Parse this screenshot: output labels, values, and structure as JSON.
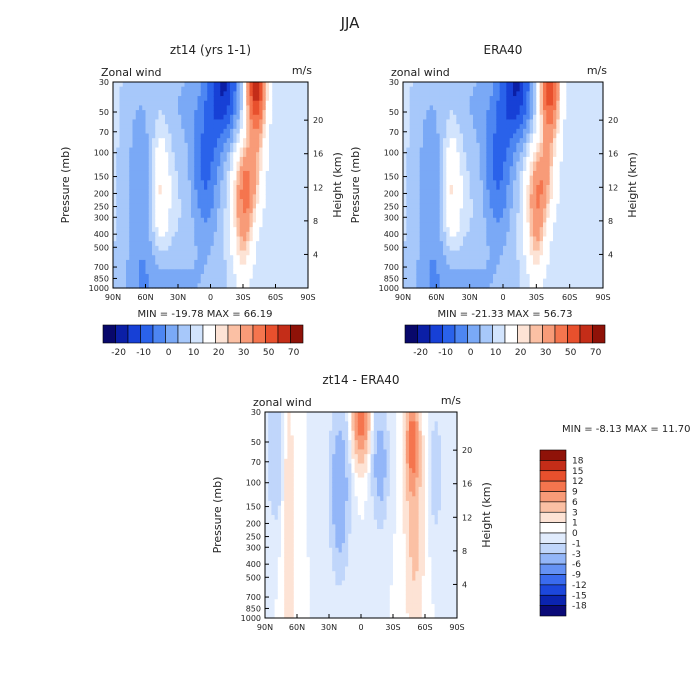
{
  "figure_title": "JJA",
  "palette": {
    "full": [
      "#08086b",
      "#0b1fa6",
      "#1740d6",
      "#2a62ea",
      "#4d86f2",
      "#7aa9f6",
      "#a7c8fa",
      "#d2e4fd",
      "#ffffff",
      "#fde3d5",
      "#fbc0a4",
      "#f89b78",
      "#f5754e",
      "#e8502d",
      "#c42d18",
      "#8f1208"
    ],
    "diff": [
      "#0a0a78",
      "#0b24b0",
      "#1c47dc",
      "#3a6bee",
      "#6592f4",
      "#93b6f8",
      "#c0d6fb",
      "#e1ecfd",
      "#ffffff",
      "#fde3d5",
      "#fbc0a4",
      "#f89b78",
      "#f5754e",
      "#e8502d",
      "#c42d18",
      "#8f1208"
    ]
  },
  "chart_data": [
    {
      "type": "heatmap",
      "title": "zt14 (yrs 1-1)",
      "subtitle_left": "Zonal wind",
      "subtitle_right": "m/s",
      "xlabel": "",
      "ylabel": "Pressure (mb)",
      "ylabel_right": "Height (km)",
      "x_ticks": [
        "90N",
        "60N",
        "30N",
        "0",
        "30S",
        "60S",
        "90S"
      ],
      "y_ticks": [
        "30",
        "50",
        "70",
        "100",
        "150",
        "200",
        "250",
        "300",
        "400",
        "500",
        "700",
        "850",
        "1000"
      ],
      "y_ticks_right": [
        "20",
        "16",
        "12",
        "8",
        "4"
      ],
      "min": -19.78,
      "max": 66.19,
      "stats_text": "MIN = -19.78   MAX = 66.19",
      "colorbar": {
        "orientation": "horizontal",
        "labels": [
          "-20",
          "-10",
          "0",
          "10",
          "20",
          "30",
          "50",
          "70"
        ]
      },
      "features": [
        {
          "lat": -40,
          "p": 30,
          "value": 65
        },
        {
          "lat": -35,
          "p": 200,
          "value": 40
        },
        {
          "lat": -15,
          "p": 40,
          "value": -19
        },
        {
          "lat": 45,
          "p": 200,
          "value": 18
        },
        {
          "lat": 40,
          "p": 1000,
          "value": -8
        }
      ]
    },
    {
      "type": "heatmap",
      "title": "ERA40",
      "subtitle_left": "zonal wind",
      "subtitle_right": "m/s",
      "xlabel": "",
      "ylabel": "Pressure (mb)",
      "ylabel_right": "Height (km)",
      "x_ticks": [
        "90N",
        "60N",
        "30N",
        "0",
        "30S",
        "60S",
        "90S"
      ],
      "y_ticks": [
        "30",
        "50",
        "70",
        "100",
        "150",
        "200",
        "250",
        "300",
        "400",
        "500",
        "700",
        "850",
        "1000"
      ],
      "y_ticks_right": [
        "20",
        "16",
        "12",
        "8",
        "4"
      ],
      "min": -21.33,
      "max": 56.73,
      "stats_text": "MIN = -21.33   MAX = 56.73",
      "colorbar": {
        "orientation": "horizontal",
        "labels": [
          "-20",
          "-10",
          "0",
          "10",
          "20",
          "30",
          "50",
          "70"
        ]
      }
    },
    {
      "type": "heatmap",
      "title": "zt14 - ERA40",
      "subtitle_left": "zonal wind",
      "subtitle_right": "m/s",
      "xlabel": "",
      "ylabel": "Pressure (mb)",
      "ylabel_right": "Height (km)",
      "x_ticks": [
        "90N",
        "60N",
        "30N",
        "0",
        "30S",
        "60S",
        "90S"
      ],
      "y_ticks": [
        "30",
        "50",
        "70",
        "100",
        "150",
        "200",
        "250",
        "300",
        "400",
        "500",
        "700",
        "850",
        "1000"
      ],
      "y_ticks_right": [
        "20",
        "16",
        "12",
        "8",
        "4"
      ],
      "min": -8.13,
      "max": 11.7,
      "stats_text": "MIN = -8.13  MAX = 11.70",
      "colorbar": {
        "orientation": "vertical",
        "labels": [
          "18",
          "15",
          "12",
          "9",
          "6",
          "3",
          "1",
          "0",
          "-1",
          "-3",
          "-6",
          "-9",
          "-12",
          "-15",
          "-18"
        ]
      }
    }
  ]
}
